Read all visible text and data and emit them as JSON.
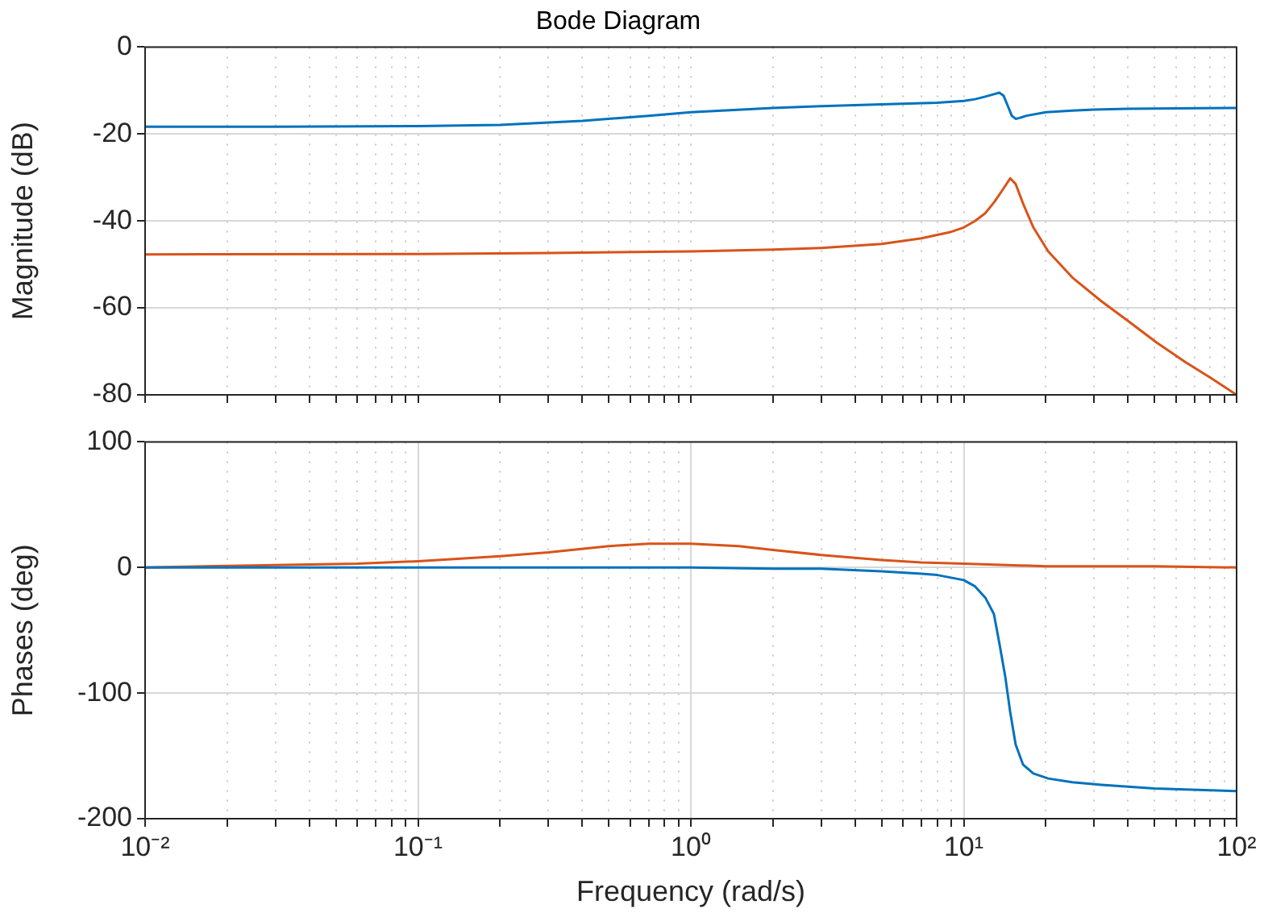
{
  "chart_data": [
    {
      "type": "line",
      "title": "Bode Diagram",
      "ylabel": "Magnitude (dB)",
      "log": "x",
      "grid": true,
      "legend": false,
      "marker": "none",
      "line_style": "solid",
      "tick_labels": "y",
      "xlim": [
        0.01,
        100
      ],
      "ylim": [
        -80,
        0
      ],
      "yticks": [
        -80,
        -60,
        -40,
        -20,
        0
      ],
      "xticks": [
        {
          "value": 0.01,
          "label": null
        },
        {
          "value": 0.02,
          "label": null
        },
        {
          "value": 0.03,
          "label": null
        },
        {
          "value": 0.04,
          "label": null
        },
        {
          "value": 0.05,
          "label": null
        },
        {
          "value": 0.06,
          "label": null
        },
        {
          "value": 0.07,
          "label": null
        },
        {
          "value": 0.08,
          "label": null
        },
        {
          "value": 0.09,
          "label": null
        },
        {
          "value": 0.1,
          "label": null
        },
        {
          "value": 0.2,
          "label": null
        },
        {
          "value": 0.3,
          "label": null
        },
        {
          "value": 0.4,
          "label": null
        },
        {
          "value": 0.5,
          "label": null
        },
        {
          "value": 0.6,
          "label": null
        },
        {
          "value": 0.7,
          "label": null
        },
        {
          "value": 0.8,
          "label": null
        },
        {
          "value": 0.9,
          "label": null
        },
        {
          "value": 1,
          "label": null
        },
        {
          "value": 2,
          "label": null
        },
        {
          "value": 3,
          "label": null
        },
        {
          "value": 4,
          "label": null
        },
        {
          "value": 5,
          "label": null
        },
        {
          "value": 6,
          "label": null
        },
        {
          "value": 7,
          "label": null
        },
        {
          "value": 8,
          "label": null
        },
        {
          "value": 9,
          "label": null
        },
        {
          "value": 10,
          "label": null
        },
        {
          "value": 20,
          "label": null
        },
        {
          "value": 30,
          "label": null
        },
        {
          "value": 40,
          "label": null
        },
        {
          "value": 50,
          "label": null
        },
        {
          "value": 60,
          "label": null
        },
        {
          "value": 70,
          "label": null
        },
        {
          "value": 80,
          "label": null
        },
        {
          "value": 90,
          "label": null
        },
        {
          "value": 100,
          "label": null
        }
      ],
      "series": [
        {
          "color": "#0072bd",
          "x": [
            0.01,
            0.03,
            0.1,
            0.2,
            0.4,
            0.7,
            1,
            2,
            3,
            5,
            8,
            10,
            11,
            12,
            13,
            13.5,
            14,
            14.5,
            15,
            15.5,
            16,
            17,
            20,
            25,
            30,
            40,
            60,
            100
          ],
          "values": [
            -18.3,
            -18.3,
            -18.2,
            -17.9,
            -17,
            -15.8,
            -15,
            -14,
            -13.6,
            -13.2,
            -12.8,
            -12.4,
            -12,
            -11.4,
            -10.8,
            -10.5,
            -11.2,
            -13.5,
            -15.8,
            -16.5,
            -16.3,
            -15.8,
            -15,
            -14.6,
            -14.4,
            -14.2,
            -14.1,
            -14
          ]
        },
        {
          "color": "#d95319",
          "x": [
            0.01,
            0.1,
            0.3,
            1,
            2,
            3,
            5,
            7,
            9,
            10,
            11,
            12,
            13,
            14,
            14.8,
            15.5,
            16.5,
            18,
            20.4,
            25,
            32,
            40,
            51,
            65,
            80,
            100
          ],
          "values": [
            -47.7,
            -47.6,
            -47.4,
            -47,
            -46.6,
            -46.2,
            -45.3,
            -44,
            -42.5,
            -41.5,
            -40,
            -38.2,
            -35.5,
            -32.5,
            -30.2,
            -31.5,
            -36,
            -41.5,
            -47,
            -53,
            -58.5,
            -63,
            -68,
            -72.5,
            -76,
            -80
          ]
        }
      ]
    },
    {
      "type": "line",
      "xlabel": "Frequency (rad/s)",
      "ylabel": "Phases (deg)",
      "log": "x",
      "grid": true,
      "legend": false,
      "marker": "none",
      "line_style": "solid",
      "xlim": [
        0.01,
        100
      ],
      "ylim": [
        -200,
        100
      ],
      "yticks": [
        -200,
        -100,
        0,
        100
      ],
      "xticks": [
        {
          "value": 0.01,
          "label": "10⁻²"
        },
        {
          "value": 0.02,
          "label": null
        },
        {
          "value": 0.03,
          "label": null
        },
        {
          "value": 0.04,
          "label": null
        },
        {
          "value": 0.05,
          "label": null
        },
        {
          "value": 0.06,
          "label": null
        },
        {
          "value": 0.07,
          "label": null
        },
        {
          "value": 0.08,
          "label": null
        },
        {
          "value": 0.09,
          "label": null
        },
        {
          "value": 0.1,
          "label": "10⁻¹"
        },
        {
          "value": 0.2,
          "label": null
        },
        {
          "value": 0.3,
          "label": null
        },
        {
          "value": 0.4,
          "label": null
        },
        {
          "value": 0.5,
          "label": null
        },
        {
          "value": 0.6,
          "label": null
        },
        {
          "value": 0.7,
          "label": null
        },
        {
          "value": 0.8,
          "label": null
        },
        {
          "value": 0.9,
          "label": null
        },
        {
          "value": 1,
          "label": "10⁰"
        },
        {
          "value": 2,
          "label": null
        },
        {
          "value": 3,
          "label": null
        },
        {
          "value": 4,
          "label": null
        },
        {
          "value": 5,
          "label": null
        },
        {
          "value": 6,
          "label": null
        },
        {
          "value": 7,
          "label": null
        },
        {
          "value": 8,
          "label": null
        },
        {
          "value": 9,
          "label": null
        },
        {
          "value": 10,
          "label": "10¹"
        },
        {
          "value": 20,
          "label": null
        },
        {
          "value": 30,
          "label": null
        },
        {
          "value": 40,
          "label": null
        },
        {
          "value": 50,
          "label": null
        },
        {
          "value": 60,
          "label": null
        },
        {
          "value": 70,
          "label": null
        },
        {
          "value": 80,
          "label": null
        },
        {
          "value": 90,
          "label": null
        },
        {
          "value": 100,
          "label": "10²"
        }
      ],
      "series": [
        {
          "color": "#0072bd",
          "x": [
            0.01,
            0.1,
            1,
            2,
            3,
            5,
            7,
            8,
            10,
            11,
            12,
            12.9,
            13.5,
            14.2,
            14.8,
            15.5,
            16.5,
            18,
            20.4,
            25,
            32,
            50,
            100
          ],
          "values": [
            0,
            0,
            0,
            -1,
            -1,
            -3,
            -5,
            -6,
            -10,
            -15,
            -24,
            -37,
            -60,
            -87,
            -115,
            -141,
            -157,
            -164,
            -168,
            -171,
            -173,
            -176,
            -178
          ]
        },
        {
          "color": "#d95319",
          "x": [
            0.01,
            0.03,
            0.06,
            0.1,
            0.2,
            0.3,
            0.5,
            0.7,
            1,
            1.5,
            2,
            3,
            5,
            7,
            10,
            20,
            50,
            100
          ],
          "values": [
            0,
            2,
            3,
            5,
            9,
            12,
            17,
            19,
            19,
            17,
            14,
            10,
            6,
            4,
            3,
            1,
            1,
            0
          ]
        }
      ]
    }
  ]
}
